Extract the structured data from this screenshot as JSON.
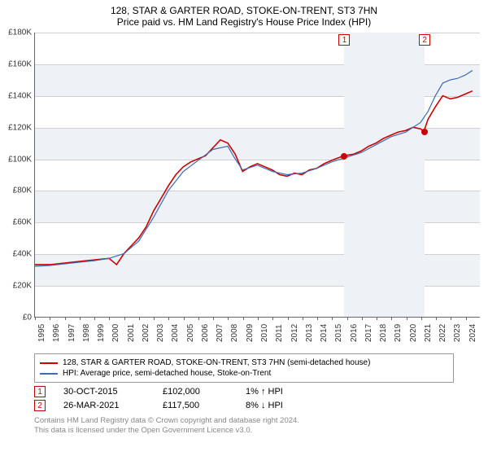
{
  "title": "128, STAR & GARTER ROAD, STOKE-ON-TRENT, ST3 7HN",
  "subtitle": "Price paid vs. HM Land Registry's House Price Index (HPI)",
  "chart": {
    "type": "line",
    "x_start_year": 1995,
    "x_end_year": 2025,
    "x_ticks": [
      1995,
      1996,
      1997,
      1998,
      1999,
      2000,
      2001,
      2002,
      2003,
      2004,
      2005,
      2006,
      2007,
      2008,
      2009,
      2010,
      2011,
      2012,
      2013,
      2014,
      2015,
      2016,
      2017,
      2018,
      2019,
      2020,
      2021,
      2022,
      2023,
      2024
    ],
    "y_min": 0,
    "y_max": 180000,
    "y_tick_step": 20000,
    "y_tick_labels": [
      "£0",
      "£20K",
      "£40K",
      "£60K",
      "£80K",
      "£100K",
      "£120K",
      "£140K",
      "£160K",
      "£180K"
    ],
    "band_color": "#eef2f7",
    "grid_color": "#d0d0d0",
    "highlight_start_year": 2015.83,
    "highlight_end_year": 2021.23,
    "series": [
      {
        "name": "property",
        "label": "128, STAR & GARTER ROAD, STOKE-ON-TRENT, ST3 7HN (semi-detached house)",
        "color": "#cc0000",
        "width": 1.6,
        "points": [
          [
            1995,
            33000
          ],
          [
            1996,
            33000
          ],
          [
            1997,
            34000
          ],
          [
            1998,
            35000
          ],
          [
            1999,
            36000
          ],
          [
            2000,
            37000
          ],
          [
            2000.5,
            33000
          ],
          [
            2001,
            40000
          ],
          [
            2001.5,
            45000
          ],
          [
            2002,
            50000
          ],
          [
            2002.5,
            57000
          ],
          [
            2003,
            67000
          ],
          [
            2003.5,
            75000
          ],
          [
            2004,
            83000
          ],
          [
            2004.5,
            90000
          ],
          [
            2005,
            95000
          ],
          [
            2005.5,
            98000
          ],
          [
            2006,
            100000
          ],
          [
            2006.5,
            102000
          ],
          [
            2007,
            107000
          ],
          [
            2007.5,
            112000
          ],
          [
            2008,
            110000
          ],
          [
            2008.5,
            103000
          ],
          [
            2009,
            92000
          ],
          [
            2009.5,
            95000
          ],
          [
            2010,
            97000
          ],
          [
            2010.5,
            95000
          ],
          [
            2011,
            93000
          ],
          [
            2011.5,
            90000
          ],
          [
            2012,
            89000
          ],
          [
            2012.5,
            91000
          ],
          [
            2013,
            90000
          ],
          [
            2013.5,
            93000
          ],
          [
            2014,
            94000
          ],
          [
            2014.5,
            97000
          ],
          [
            2015,
            99000
          ],
          [
            2015.83,
            102000
          ],
          [
            2016.5,
            103000
          ],
          [
            2017,
            105000
          ],
          [
            2017.5,
            108000
          ],
          [
            2018,
            110000
          ],
          [
            2018.5,
            113000
          ],
          [
            2019,
            115000
          ],
          [
            2019.5,
            117000
          ],
          [
            2020,
            118000
          ],
          [
            2020.5,
            120000
          ],
          [
            2021,
            119000
          ],
          [
            2021.23,
            117500
          ],
          [
            2021.5,
            125000
          ],
          [
            2022,
            133000
          ],
          [
            2022.5,
            140000
          ],
          [
            2023,
            138000
          ],
          [
            2023.5,
            139000
          ],
          [
            2024,
            141000
          ],
          [
            2024.5,
            143000
          ]
        ]
      },
      {
        "name": "hpi",
        "label": "HPI: Average price, semi-detached house, Stoke-on-Trent",
        "color": "#3b6db3",
        "width": 1.2,
        "points": [
          [
            1995,
            32000
          ],
          [
            1996,
            32500
          ],
          [
            1997,
            33500
          ],
          [
            1998,
            34500
          ],
          [
            1999,
            35500
          ],
          [
            2000,
            37000
          ],
          [
            2001,
            40000
          ],
          [
            2002,
            48000
          ],
          [
            2003,
            63000
          ],
          [
            2004,
            80000
          ],
          [
            2005,
            92000
          ],
          [
            2006,
            99000
          ],
          [
            2007,
            106000
          ],
          [
            2008,
            108000
          ],
          [
            2008.5,
            100000
          ],
          [
            2009,
            93000
          ],
          [
            2010,
            96000
          ],
          [
            2011,
            92000
          ],
          [
            2012,
            90000
          ],
          [
            2013,
            91000
          ],
          [
            2014,
            94000
          ],
          [
            2015,
            98000
          ],
          [
            2016,
            101000
          ],
          [
            2017,
            104000
          ],
          [
            2018,
            109000
          ],
          [
            2019,
            114000
          ],
          [
            2020,
            117000
          ],
          [
            2021,
            123000
          ],
          [
            2021.5,
            130000
          ],
          [
            2022,
            140000
          ],
          [
            2022.5,
            148000
          ],
          [
            2023,
            150000
          ],
          [
            2023.5,
            151000
          ],
          [
            2024,
            153000
          ],
          [
            2024.5,
            156000
          ]
        ]
      }
    ],
    "sale_markers": [
      {
        "idx": "1",
        "year": 2015.83,
        "price": 102000
      },
      {
        "idx": "2",
        "year": 2021.23,
        "price": 117500
      }
    ]
  },
  "legend": {
    "series1_label": "128, STAR & GARTER ROAD, STOKE-ON-TRENT, ST3 7HN (semi-detached house)",
    "series2_label": "HPI: Average price, semi-detached house, Stoke-on-Trent",
    "series1_color": "#cc0000",
    "series2_color": "#3b6db3"
  },
  "sales": [
    {
      "idx": "1",
      "date": "30-OCT-2015",
      "price": "£102,000",
      "delta": "1% ↑ HPI"
    },
    {
      "idx": "2",
      "date": "26-MAR-2021",
      "price": "£117,500",
      "delta": "8% ↓ HPI"
    }
  ],
  "footer_line1": "Contains HM Land Registry data © Crown copyright and database right 2024.",
  "footer_line2": "This data is licensed under the Open Government Licence v3.0."
}
